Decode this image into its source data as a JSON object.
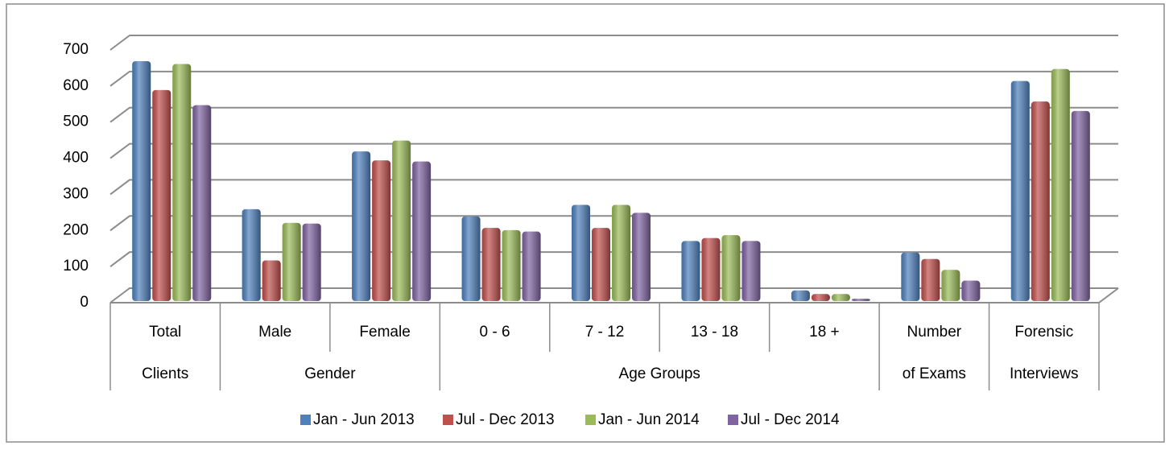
{
  "chart_data": {
    "type": "bar",
    "category_groups": [
      {
        "name": "Clients",
        "categories": [
          "Total"
        ]
      },
      {
        "name": "Gender",
        "categories": [
          "Male",
          "Female"
        ]
      },
      {
        "name": "Age Groups",
        "categories": [
          "0 - 6",
          "7 - 12",
          "13 - 18",
          "18 +"
        ]
      },
      {
        "name": "of Exams",
        "categories": [
          "Number"
        ]
      },
      {
        "name": "Interviews",
        "categories": [
          "Forensic"
        ]
      }
    ],
    "series": [
      {
        "name": "Jan - Jun 2013",
        "color": "#4f81bd",
        "values": [
          660,
          250,
          410,
          230,
          262,
          162,
          25,
          130,
          605
        ]
      },
      {
        "name": "Jul - Dec 2013",
        "color": "#c0504d",
        "values": [
          580,
          108,
          385,
          198,
          198,
          170,
          15,
          112,
          548
        ]
      },
      {
        "name": "Jan - Jun 2014",
        "color": "#9bbb59",
        "values": [
          652,
          212,
          440,
          192,
          262,
          178,
          15,
          82,
          638
        ]
      },
      {
        "name": "Jul - Dec 2014",
        "color": "#8064a2",
        "values": [
          538,
          210,
          382,
          188,
          240,
          162,
          2,
          52,
          522
        ]
      }
    ],
    "ylim": [
      0,
      700
    ],
    "yticks": [
      0,
      100,
      200,
      300,
      400,
      500,
      600,
      700
    ],
    "grid": true,
    "legend": "bottom"
  }
}
